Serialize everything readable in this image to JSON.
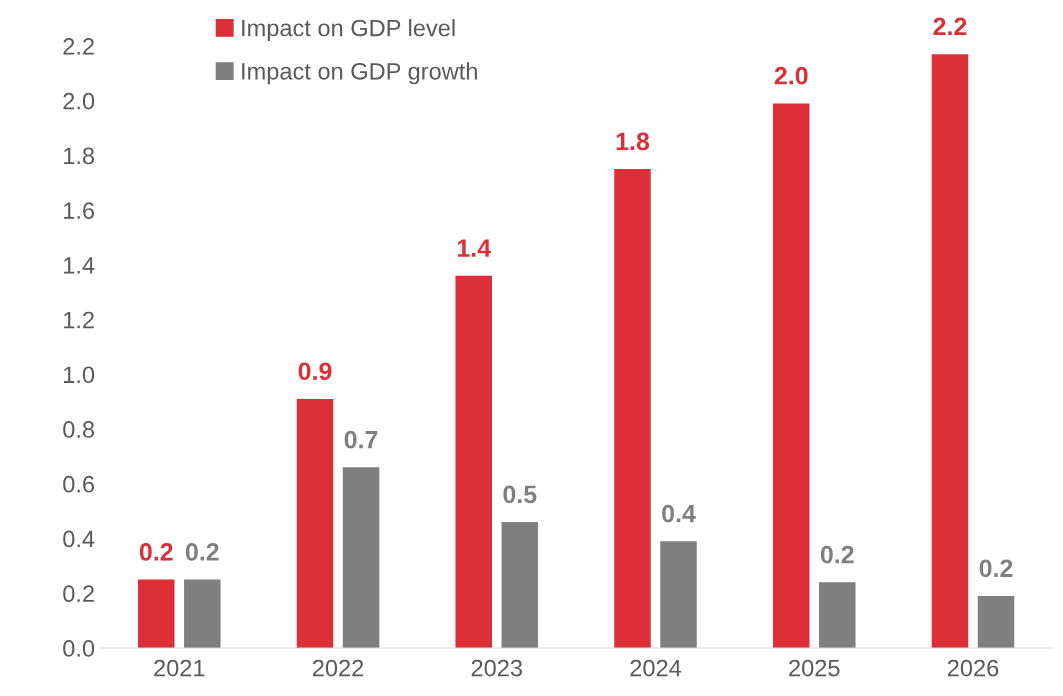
{
  "chart_data": {
    "type": "bar",
    "categories": [
      "2021",
      "2022",
      "2023",
      "2024",
      "2025",
      "2026"
    ],
    "series": [
      {
        "name": "Impact on GDP level",
        "color": "#dc2f37",
        "values": [
          0.25,
          0.91,
          1.36,
          1.75,
          1.99,
          2.17
        ],
        "value_labels": [
          "0.2",
          "0.9",
          "1.4",
          "1.8",
          "2.0",
          "2.2"
        ]
      },
      {
        "name": "Impact on GDP growth",
        "color": "#7f7f80",
        "values": [
          0.25,
          0.66,
          0.46,
          0.39,
          0.24,
          0.19
        ],
        "value_labels": [
          "0.2",
          "0.7",
          "0.5",
          "0.4",
          "0.2",
          "0.2"
        ]
      }
    ],
    "ylim": [
      0,
      2.2
    ],
    "yticks": [
      "0.0",
      0.2,
      0.4,
      0.6,
      0.8,
      "1.0",
      1.2,
      1.4,
      1.6,
      1.8,
      "2.0",
      2.2
    ],
    "grid": false,
    "legend": "top left"
  }
}
